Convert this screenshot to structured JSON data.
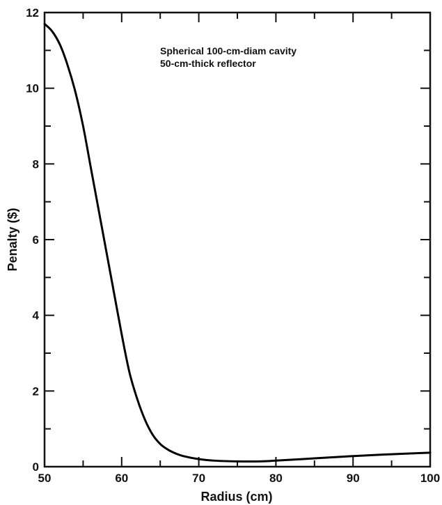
{
  "chart_data": {
    "type": "line",
    "xlabel": "Radius (cm)",
    "ylabel": "Penalty ($)",
    "xlim": [
      50,
      100
    ],
    "ylim": [
      0,
      12
    ],
    "grid": false,
    "legend": "none",
    "x_ticks": [
      "50",
      "60",
      "70",
      "80",
      "90",
      "100"
    ],
    "y_ticks": [
      "0",
      "2",
      "4",
      "6",
      "8",
      "10",
      "12"
    ],
    "annotations": [
      "Spherical 100-cm-diam cavity",
      "50-cm-thick reflector"
    ],
    "series": [
      {
        "color": "#000000",
        "x": [
          50,
          51,
          52,
          53,
          54,
          55,
          56,
          57,
          58,
          59,
          60,
          61,
          62,
          63,
          64,
          65,
          66,
          67,
          68,
          70,
          72,
          75,
          78,
          80,
          85,
          90,
          95,
          100
        ],
        "y": [
          11.7,
          11.5,
          11.15,
          10.6,
          9.9,
          9.0,
          7.9,
          6.8,
          5.7,
          4.6,
          3.5,
          2.5,
          1.8,
          1.25,
          0.85,
          0.6,
          0.45,
          0.35,
          0.28,
          0.2,
          0.16,
          0.14,
          0.14,
          0.16,
          0.22,
          0.28,
          0.33,
          0.37
        ]
      }
    ]
  }
}
